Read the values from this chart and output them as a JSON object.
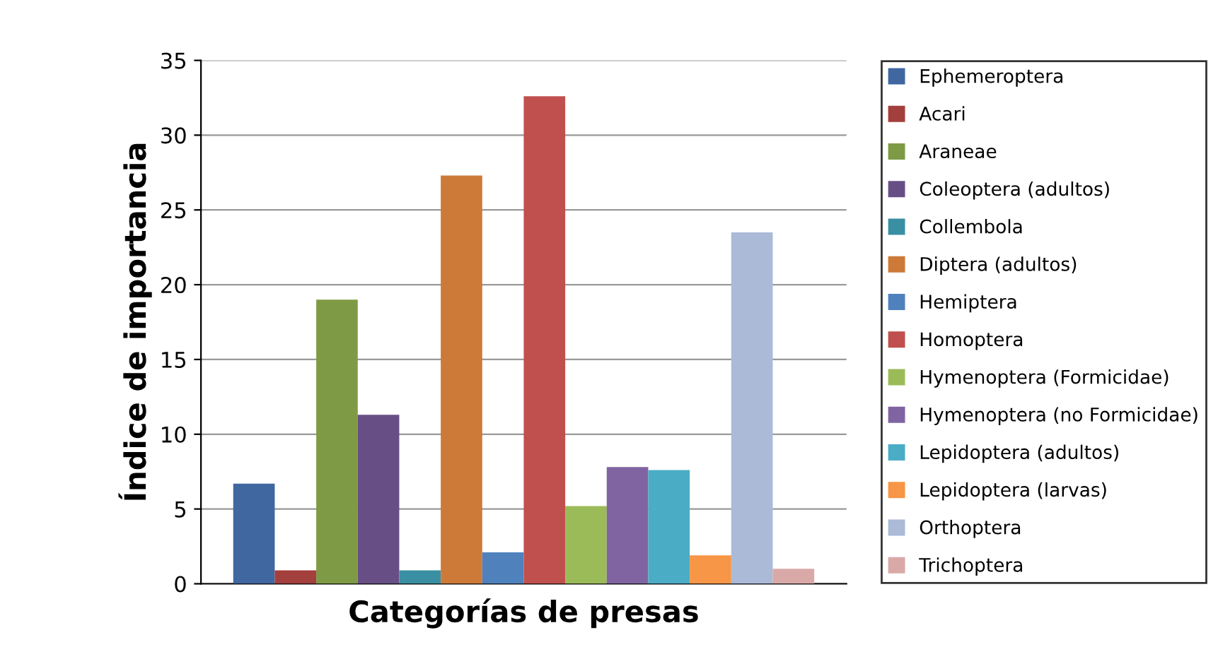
{
  "chart_data": {
    "type": "bar",
    "xlabel": "Categorías de presas",
    "ylabel": "Índice de importancia",
    "categories": [
      null
    ],
    "ylim": [
      0,
      35
    ],
    "yticks": [
      0,
      5,
      10,
      15,
      20,
      25,
      30,
      35
    ],
    "grid": "y",
    "legend": "right",
    "series": [
      {
        "name": "Ephemeroptera",
        "color": "#4067a0",
        "values": [
          6.7
        ]
      },
      {
        "name": "Acari",
        "color": "#a33f3c",
        "values": [
          0.9
        ]
      },
      {
        "name": "Araneae",
        "color": "#7f9a44",
        "values": [
          19.0
        ]
      },
      {
        "name": "Coleoptera (adultos)",
        "color": "#674f86",
        "values": [
          11.3
        ]
      },
      {
        "name": "Collembola",
        "color": "#3a8fa3",
        "values": [
          0.9
        ]
      },
      {
        "name": "Diptera (adultos)",
        "color": "#cd7a38",
        "values": [
          27.3
        ]
      },
      {
        "name": "Hemiptera",
        "color": "#4f81bd",
        "values": [
          2.1
        ]
      },
      {
        "name": "Homoptera",
        "color": "#c0504d",
        "values": [
          32.6
        ]
      },
      {
        "name": "Hymenoptera (Formicidae)",
        "color": "#9bbb59",
        "values": [
          5.2
        ]
      },
      {
        "name": "Hymenoptera (no Formicidae)",
        "color": "#8064a2",
        "values": [
          7.8
        ]
      },
      {
        "name": "Lepidoptera (adultos)",
        "color": "#4bacc6",
        "values": [
          7.6
        ]
      },
      {
        "name": "Lepidoptera (larvas)",
        "color": "#f79646",
        "values": [
          1.9
        ]
      },
      {
        "name": "Orthoptera",
        "color": "#aabad7",
        "values": [
          23.5
        ]
      },
      {
        "name": "Trichoptera",
        "color": "#d9a9a8",
        "values": [
          1.0
        ]
      }
    ]
  }
}
